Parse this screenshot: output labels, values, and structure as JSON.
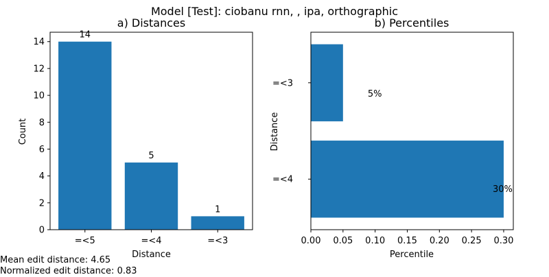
{
  "figure": {
    "suptitle": "Model [Test]: ciobanu rnn, , ipa, orthographic",
    "mean_label": "Mean edit distance:",
    "mean_value": "4.65",
    "norm_label": "Normalized edit distance:",
    "norm_value": "0.83",
    "bar_color": "#1f77b4"
  },
  "chart_data": [
    {
      "type": "bar",
      "title": "a) Distances",
      "xlabel": "Distance",
      "ylabel": "Count",
      "categories": [
        "=<5",
        "=<4",
        "=<3"
      ],
      "values": [
        14,
        5,
        1
      ],
      "data_labels": [
        "14",
        "5",
        "1"
      ],
      "ylim": [
        0,
        14.7
      ],
      "yticks": [
        0,
        2,
        4,
        6,
        8,
        10,
        12,
        14
      ],
      "grid": false
    },
    {
      "type": "bar",
      "orientation": "horizontal",
      "title": "b) Percentiles",
      "xlabel": "Percentile",
      "ylabel": "Distance",
      "categories": [
        "=<4",
        "=<3"
      ],
      "values": [
        0.3,
        0.05
      ],
      "data_labels": [
        "30%",
        "5%"
      ],
      "xlim": [
        0,
        0.315
      ],
      "xticks": [
        0.0,
        0.05,
        0.1,
        0.15,
        0.2,
        0.25,
        0.3
      ],
      "grid": false
    }
  ]
}
